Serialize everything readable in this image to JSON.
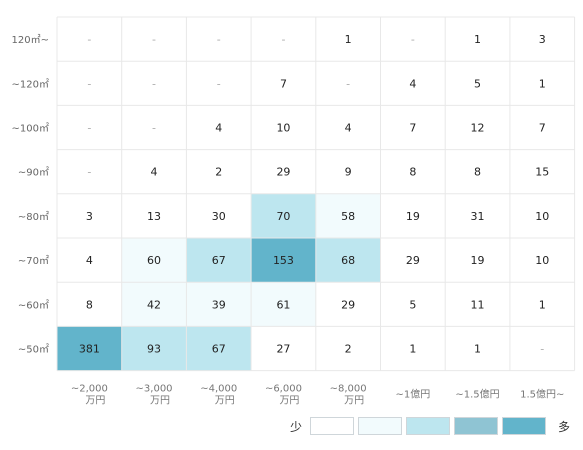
{
  "chart_data": {
    "type": "heatmap",
    "rows": [
      "120㎡~",
      "~120㎡",
      "~100㎡",
      "~90㎡",
      "~80㎡",
      "~70㎡",
      "~60㎡",
      "~50㎡"
    ],
    "columns": [
      [
        "~2,000",
        "万円"
      ],
      [
        "~3,000",
        "万円"
      ],
      [
        "~4,000",
        "万円"
      ],
      [
        "~6,000",
        "万円"
      ],
      [
        "~8,000",
        "万円"
      ],
      [
        "~1億円"
      ],
      [
        "~1.5億円"
      ],
      [
        "1.5億円~"
      ]
    ],
    "values": [
      [
        "-",
        "-",
        "-",
        "-",
        "1",
        "-",
        "1",
        "3"
      ],
      [
        "-",
        "-",
        "-",
        "7",
        "-",
        "4",
        "5",
        "1"
      ],
      [
        "-",
        "-",
        "4",
        "10",
        "4",
        "7",
        "12",
        "7"
      ],
      [
        "-",
        "4",
        "2",
        "29",
        "9",
        "8",
        "8",
        "15"
      ],
      [
        "3",
        "13",
        "30",
        "70",
        "58",
        "19",
        "31",
        "10"
      ],
      [
        "4",
        "60",
        "67",
        "153",
        "68",
        "29",
        "19",
        "10"
      ],
      [
        "8",
        "42",
        "39",
        "61",
        "29",
        "5",
        "11",
        "1"
      ],
      [
        "381",
        "93",
        "67",
        "27",
        "2",
        "1",
        "1",
        "-"
      ]
    ],
    "levels": [
      [
        0,
        0,
        0,
        0,
        0,
        0,
        0,
        0
      ],
      [
        0,
        0,
        0,
        0,
        0,
        0,
        0,
        0
      ],
      [
        0,
        0,
        0,
        0,
        0,
        0,
        0,
        0
      ],
      [
        0,
        0,
        0,
        0,
        0,
        0,
        0,
        0
      ],
      [
        0,
        0,
        0,
        2,
        1,
        0,
        0,
        0
      ],
      [
        0,
        1,
        2,
        4,
        2,
        0,
        0,
        0
      ],
      [
        0,
        1,
        1,
        1,
        0,
        0,
        0,
        0
      ],
      [
        4,
        2,
        2,
        0,
        0,
        0,
        0,
        0
      ]
    ]
  },
  "legend": {
    "low_label": "少",
    "high_label": "多",
    "colors": [
      "#ffffff",
      "#f2fbfd",
      "#bde6ef",
      "#8fc4d3",
      "#62b4cb"
    ]
  }
}
